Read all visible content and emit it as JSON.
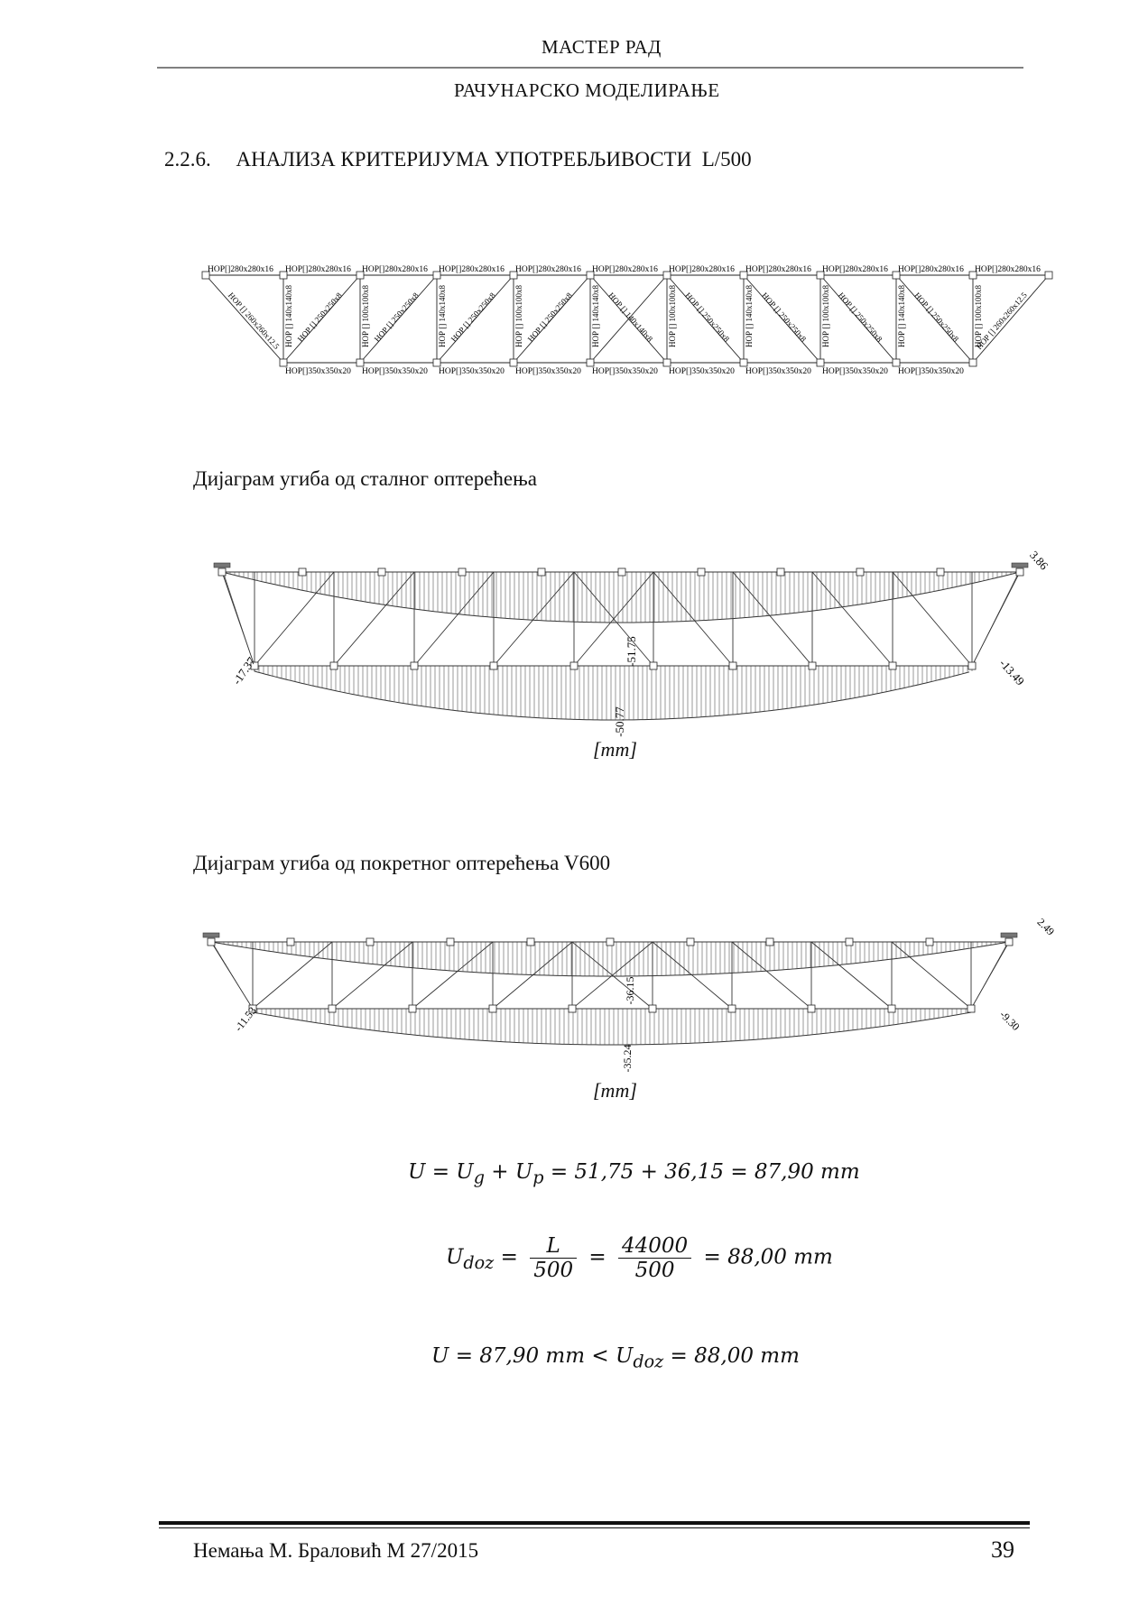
{
  "header": {
    "title": "МАСТЕР РАД",
    "subtitle": "РАЧУНАРСКО МОДЕЛИРАЊЕ"
  },
  "section": {
    "number": "2.2.6.",
    "title": "АНАЛИЗА КРИТЕРИЈУМА УПОТРЕБЉИВОСТИ  L/500"
  },
  "truss": {
    "top_chord_label": "НОР[]280x280x16",
    "bottom_chord_label": "НОР[]350x350x20",
    "vertical_label": "НОР [] 140x140x8",
    "vertical_mid_label": "НОР [] 100x100x8",
    "diagonal_end_label": "НОР [] 260x260x12.5",
    "diagonal_label": "НОР [] 250x250x8",
    "diagonal_center_label": "НОР [] 140x140x8"
  },
  "diagram1": {
    "caption": "Дијаграм угиба од сталног оптерећења",
    "label_top_mid": "-51.75",
    "label_bottom_mid": "-50.77",
    "label_left": "-17.37",
    "label_right": "-13.49",
    "label_top_right": "3.86",
    "unit": "[mm]"
  },
  "diagram2": {
    "caption": "Дијаграм угиба од покретног оптерећења V600",
    "label_top_mid": "-36.15",
    "label_bottom_mid": "-35.24",
    "label_left": "-11.53",
    "label_right": "-9.30",
    "label_top_right": "2.49",
    "unit": "[mm]"
  },
  "equations": {
    "eq1": {
      "lhs": "U",
      "mid1": "U",
      "mid1_sub": "g",
      "mid2": "U",
      "mid2_sub": "p",
      "rhs": "51,75 + 36,15 = 87,90 mm"
    },
    "eq2": {
      "lhs": "U",
      "lhs_sub": "doz",
      "f1_num": "L",
      "f1_den": "500",
      "f2_num": "44000",
      "f2_den": "500",
      "rhs": "88,00 mm"
    },
    "eq3": {
      "text1": "U = 87,90 mm < U",
      "sub": "doz",
      "text2": "= 88,00 mm"
    }
  },
  "footer": {
    "author": "Немања М. Браловић М 27/2015",
    "page": "39"
  }
}
